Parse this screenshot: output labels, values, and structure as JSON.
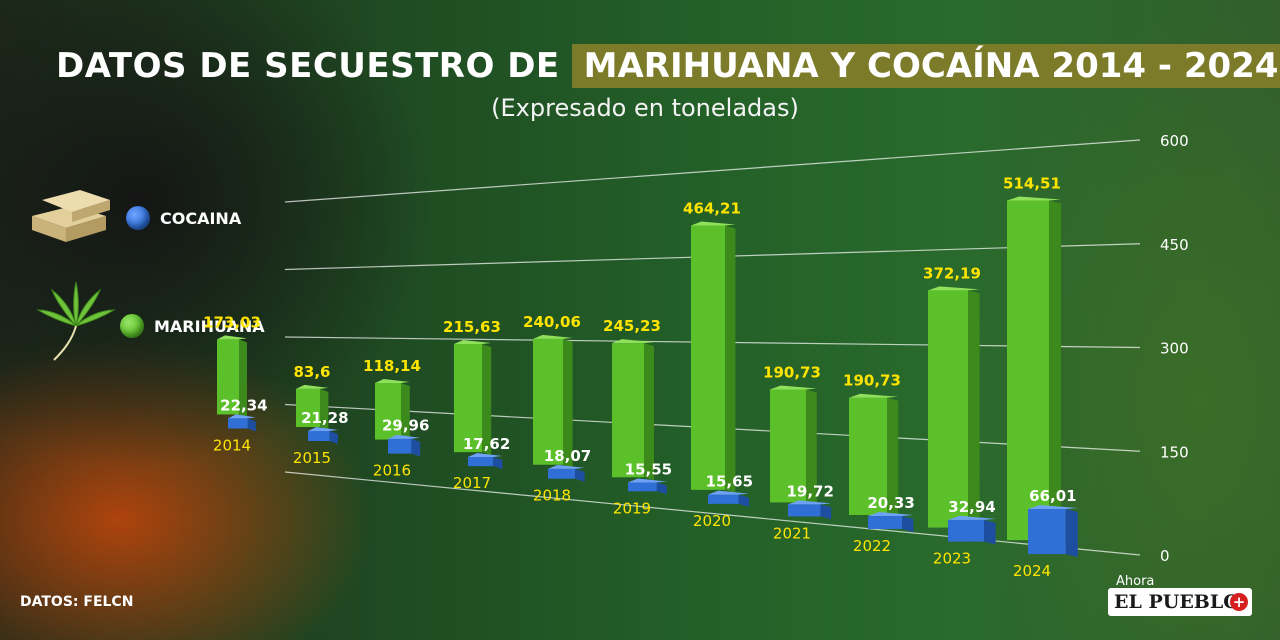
{
  "header": {
    "title_part1": "DATOS DE SECUESTRO DE",
    "title_part2": "MARIHUANA Y COCAÍNA 2014 - 2024",
    "subtitle": "(Expresado en toneladas)"
  },
  "legend": [
    {
      "label": "COCAINA",
      "color": "#2f6fd6",
      "icon": "cocaine-bricks-icon"
    },
    {
      "label": "MARIHUANA",
      "color": "#5cc02a",
      "icon": "cannabis-leaf-icon"
    }
  ],
  "source": "DATOS: FELCN",
  "logo": {
    "small": "Ahora",
    "main": "EL PUEBLO",
    "plus": "+"
  },
  "chart_data": {
    "type": "bar",
    "categories": [
      "2014",
      "2015",
      "2016",
      "2017",
      "2018",
      "2019",
      "2020",
      "2021",
      "2022",
      "2023",
      "2024"
    ],
    "series": [
      {
        "name": "MARIHUANA",
        "color": "#5cc02a",
        "values": [
          173.03,
          83.6,
          118.14,
          215.63,
          240.06,
          245.23,
          464.21,
          190.73,
          190.73,
          372.19,
          514.51
        ],
        "labels": [
          "173,03",
          "83,6",
          "118,14",
          "215,63",
          "240,06",
          "245,23",
          "464,21",
          "190,73",
          "190,73",
          "372,19",
          "514,51"
        ]
      },
      {
        "name": "COCAINA",
        "color": "#2f6fd6",
        "values": [
          22.34,
          21.28,
          29.96,
          17.62,
          18.07,
          15.55,
          15.65,
          19.72,
          20.33,
          32.94,
          66.01
        ],
        "labels": [
          "22,34",
          "21,28",
          "29,96",
          "17,62",
          "18,07",
          "15,55",
          "15,65",
          "19,72",
          "20,33",
          "32,94",
          "66,01"
        ]
      }
    ],
    "yticks": [
      "0",
      "150",
      "300",
      "450",
      "600"
    ],
    "ylim": [
      0,
      600
    ],
    "grid": true,
    "legend_position": "left"
  }
}
